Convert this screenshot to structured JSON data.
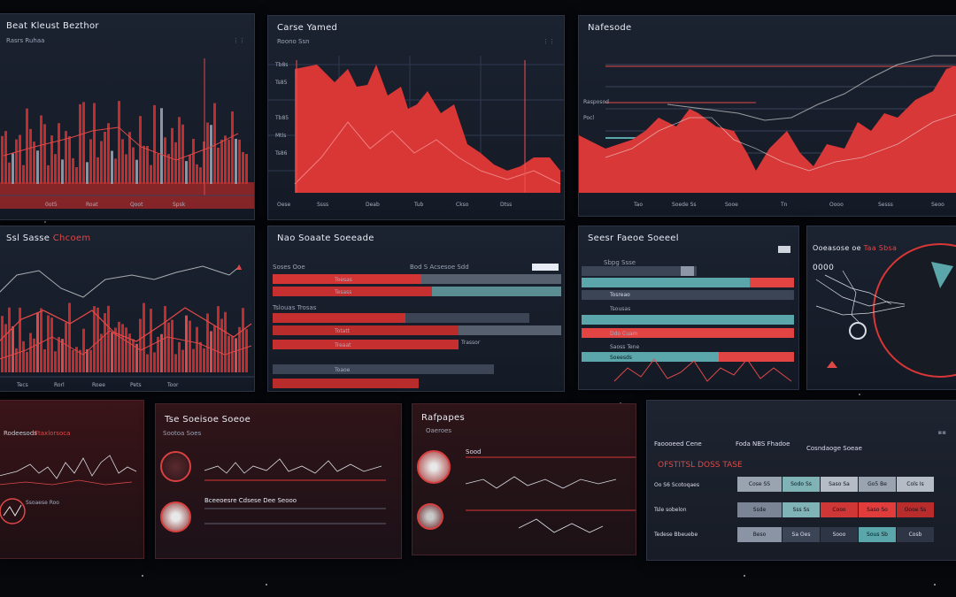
{
  "colors": {
    "accent": "#e23a3a",
    "teal": "#5aa6aa",
    "bg": "#07080c",
    "panel": "#1a2130"
  },
  "panel1": {
    "title": "Beat Kleust Bezthor",
    "sub": "Rasrs Ruhaa",
    "ticks": [
      "0ot5",
      "Roat",
      "Qoot",
      "Spsk"
    ]
  },
  "panel2": {
    "title": "Carse Yamed",
    "sub": "Roono Ssn",
    "yticks": [
      "Tb8s",
      "Ts85",
      "Tb85",
      "Mtls",
      "Ts86"
    ],
    "ticks": [
      "Oese",
      "Ssss",
      "Deab",
      "Tub",
      "Ckso",
      "Dtss"
    ]
  },
  "panel3": {
    "title": "Nafesode",
    "yticks": [
      "Rasposod",
      "Pocl"
    ],
    "ticks": [
      "Tao",
      "Soede Ss",
      "Sooe",
      "Tn",
      "Oooo",
      "Sesss",
      "Seoo"
    ]
  },
  "panel4": {
    "title": "Ssl Sasse",
    "title_red": "Chcoem",
    "ticks": [
      "Tecs",
      "Rorl",
      "Roee",
      "Pets",
      "Toor"
    ]
  },
  "panel5": {
    "title": "Nao Soaate Soeeade",
    "sub": "Soses Ooe",
    "sub2": "Bod S Acsesoe Sdd",
    "bar_labels": [
      "Toesas",
      "Tesass",
      "Totatt",
      "Treaat",
      "Toaoe"
    ],
    "mid_label": "Tslouas Trosas",
    "right_label": "Trassor"
  },
  "panel6": {
    "title": "Seesr Faeoe Soeeel",
    "sub": "Sbpg Ssse",
    "labels": [
      "Tosreao",
      "Tsousas",
      "Ddo Cuam",
      "Saoss Tene",
      "Soeesds"
    ]
  },
  "panel7": {
    "title": "Ooeasose oe",
    "title_red": "Taa Sbsa",
    "big": "0000"
  },
  "panel8": {
    "title": "",
    "sub": "Rodeesods",
    "sub_red": "Ftaxlorsoca",
    "label": "Ssoaese Roo"
  },
  "panel9": {
    "title": "Tse Soeisoe Soeoe",
    "sub": "Sootoa Soes",
    "sub2": "Bceeoesre Cdsese Dee Seooo"
  },
  "panel10": {
    "title": "Rafpapes",
    "sub": "Oaeroes",
    "sub2": "Sood"
  },
  "panel11": {
    "sub": "Faoooeed Cene",
    "sub2": "Foda NBS Fhadoe",
    "sub3": "Cosndaoge Soeae",
    "red_header": "OFSTITSL DOSS  TASE",
    "rows": [
      {
        "label": "Oo S6 Scotoqaes",
        "cells": [
          "Cose SS",
          "Sodo Ss",
          "Saso Sa",
          "Go5 Be",
          "Cols Is"
        ]
      },
      {
        "label": "Tsle sobelon",
        "cells": [
          "Ssde",
          "Sss Ss",
          "Cooo",
          "Saso So",
          "Oooe Ss"
        ]
      },
      {
        "label": "Tedese Bbeuebe",
        "cells": [
          "Beso",
          "Sa Oes",
          "Sooo",
          "Sous Sb",
          "Cosb"
        ]
      }
    ]
  }
}
